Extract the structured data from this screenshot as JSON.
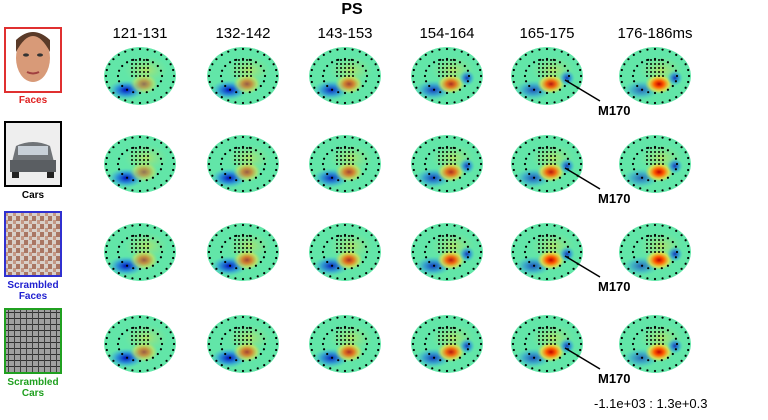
{
  "title": "PS",
  "columns": [
    "121-131",
    "132-142",
    "143-153",
    "154-164",
    "165-175",
    "176-186ms"
  ],
  "rows": [
    {
      "label": "Faces",
      "annotation": "M170"
    },
    {
      "label": "Cars",
      "annotation": "M170"
    },
    {
      "label": "Scrambled Faces",
      "annotation": "M170"
    },
    {
      "label": "Scrambled Cars",
      "annotation": "M170"
    }
  ],
  "range": "-1.1e+03 : 1.3e+0.3"
}
